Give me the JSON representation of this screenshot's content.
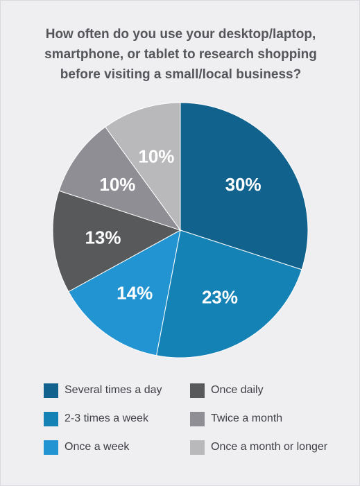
{
  "chart_data": {
    "type": "pie",
    "title": [
      "How often do you use your desktop/laptop,",
      "smartphone, or tablet to research shopping",
      "before visiting a small/local business?"
    ],
    "categories": [
      "Several times a day",
      "2-3 times a week",
      "Once a week",
      "Once daily",
      "Twice a month",
      "Once a month or longer"
    ],
    "values": [
      30,
      23,
      14,
      13,
      10,
      10
    ],
    "value_labels": [
      "30%",
      "23%",
      "14%",
      "13%",
      "10%",
      "10%"
    ],
    "colors": [
      "#11638e",
      "#1582b6",
      "#2394d2",
      "#58595b",
      "#8f8e95",
      "#b9b9bb"
    ],
    "legend_position": "bottom",
    "start_angle": "12 o'clock",
    "direction": "clockwise"
  }
}
